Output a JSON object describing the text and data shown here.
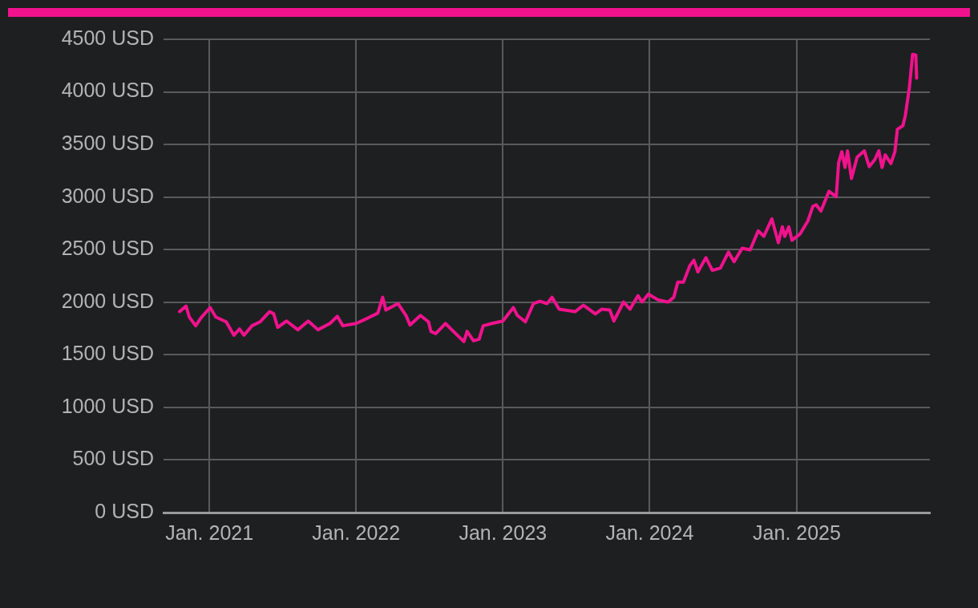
{
  "chart_data": {
    "type": "line",
    "x": [
      "2020-10-19",
      "2020-11-04",
      "2020-11-12",
      "2020-11-28",
      "2020-12-11",
      "2021-01-03",
      "2021-01-17",
      "2021-02-12",
      "2021-03-03",
      "2021-03-17",
      "2021-03-28",
      "2021-04-17",
      "2021-05-07",
      "2021-05-31",
      "2021-06-10",
      "2021-06-20",
      "2021-07-12",
      "2021-08-09",
      "2021-09-04",
      "2021-09-28",
      "2021-10-28",
      "2021-11-15",
      "2021-11-29",
      "2022-01-01",
      "2022-01-31",
      "2022-02-24",
      "2022-03-08",
      "2022-03-16",
      "2022-04-15",
      "2022-05-05",
      "2022-05-15",
      "2022-06-10",
      "2022-06-30",
      "2022-07-06",
      "2022-07-18",
      "2022-08-11",
      "2022-09-04",
      "2022-09-26",
      "2022-10-04",
      "2022-10-20",
      "2022-11-03",
      "2022-11-13",
      "2022-12-05",
      "2023-01-01",
      "2023-01-27",
      "2023-02-06",
      "2023-02-26",
      "2023-03-18",
      "2023-04-03",
      "2023-04-21",
      "2023-05-03",
      "2023-05-21",
      "2023-06-30",
      "2023-07-20",
      "2023-08-19",
      "2023-09-04",
      "2023-09-24",
      "2023-10-04",
      "2023-10-28",
      "2023-11-13",
      "2023-12-03",
      "2023-12-13",
      "2023-12-29",
      "2024-01-21",
      "2024-02-14",
      "2024-02-16",
      "2024-03-01",
      "2024-03-11",
      "2024-03-25",
      "2024-04-10",
      "2024-04-20",
      "2024-04-30",
      "2024-05-20",
      "2024-06-05",
      "2024-06-25",
      "2024-07-15",
      "2024-07-29",
      "2024-08-18",
      "2024-09-07",
      "2024-09-27",
      "2024-10-11",
      "2024-10-31",
      "2024-11-16",
      "2024-11-26",
      "2024-12-02",
      "2024-12-12",
      "2024-12-20",
      "2025-01-09",
      "2025-01-29",
      "2025-02-10",
      "2025-02-18",
      "2025-03-02",
      "2025-03-22",
      "2025-04-09",
      "2025-04-15",
      "2025-04-23",
      "2025-05-01",
      "2025-05-07",
      "2025-05-17",
      "2025-05-31",
      "2025-06-18",
      "2025-06-30",
      "2025-07-14",
      "2025-07-24",
      "2025-08-01",
      "2025-08-09",
      "2025-08-23",
      "2025-09-02",
      "2025-09-08",
      "2025-09-22",
      "2025-09-28",
      "2025-10-08",
      "2025-10-16",
      "2025-10-24",
      "2025-10-26"
    ],
    "series": [
      {
        "color": "#f0128c",
        "values": [
          1911,
          1964,
          1859,
          1776,
          1851,
          1949,
          1859,
          1813,
          1686,
          1746,
          1686,
          1776,
          1813,
          1911,
          1889,
          1761,
          1821,
          1738,
          1821,
          1738,
          1798,
          1866,
          1776,
          1798,
          1851,
          1896,
          2047,
          1926,
          1987,
          1874,
          1783,
          1874,
          1813,
          1723,
          1701,
          1798,
          1708,
          1625,
          1723,
          1633,
          1648,
          1776,
          1798,
          1821,
          1949,
          1874,
          1813,
          1987,
          2009,
          1987,
          2047,
          1934,
          1911,
          1972,
          1889,
          1934,
          1926,
          1821,
          2002,
          1934,
          2062,
          2002,
          2077,
          2024,
          2002,
          2002,
          2047,
          2190,
          2190,
          2348,
          2400,
          2288,
          2423,
          2303,
          2325,
          2476,
          2385,
          2513,
          2498,
          2679,
          2626,
          2792,
          2566,
          2717,
          2626,
          2717,
          2589,
          2649,
          2777,
          2912,
          2927,
          2867,
          3055,
          3002,
          3326,
          3431,
          3281,
          3439,
          3176,
          3379,
          3439,
          3289,
          3356,
          3439,
          3281,
          3401,
          3318,
          3431,
          3642,
          3680,
          3778,
          4041,
          4357,
          4350,
          4131
        ]
      }
    ],
    "xlim": [
      "2020-09-09",
      "2025-11-28"
    ],
    "xticks": [
      {
        "value": "2021-01-01",
        "label": "Jan. 2021"
      },
      {
        "value": "2022-01-01",
        "label": "Jan. 2022"
      },
      {
        "value": "2023-01-01",
        "label": "Jan. 2023"
      },
      {
        "value": "2024-01-01",
        "label": "Jan. 2024"
      },
      {
        "value": "2025-01-01",
        "label": "Jan. 2025"
      }
    ],
    "ylim": [
      0,
      4500
    ],
    "yticks": [
      {
        "value": 0,
        "label": "0 USD"
      },
      {
        "value": 500,
        "label": "500 USD"
      },
      {
        "value": 1000,
        "label": "1000 USD"
      },
      {
        "value": 1500,
        "label": "1500 USD"
      },
      {
        "value": 2000,
        "label": "2000 USD"
      },
      {
        "value": 2500,
        "label": "2500 USD"
      },
      {
        "value": 3000,
        "label": "3000 USD"
      },
      {
        "value": 3500,
        "label": "3500 USD"
      },
      {
        "value": 4000,
        "label": "4000 USD"
      },
      {
        "value": 4500,
        "label": "4500 USD"
      }
    ],
    "grid": true,
    "marker": "none",
    "legend": false
  }
}
